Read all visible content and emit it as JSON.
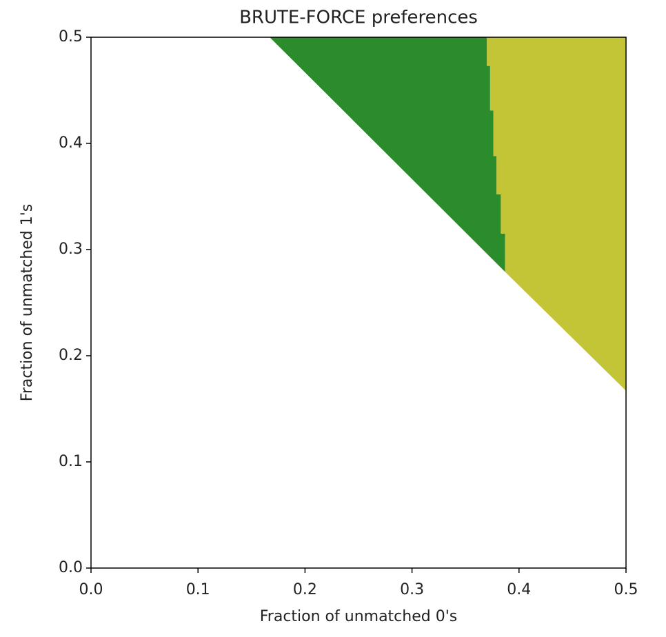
{
  "chart_data": {
    "type": "region",
    "title": "BRUTE-FORCE preferences",
    "xlabel": "Fraction of unmatched 0's",
    "ylabel": "Fraction of unmatched 1's",
    "xlim": [
      0,
      0.5
    ],
    "ylim": [
      0,
      0.5
    ],
    "xticks": [
      {
        "value": 0,
        "label": "0.0"
      },
      0.1,
      0.2,
      0.3,
      0.4,
      0.5
    ],
    "yticks": [
      {
        "value": 0,
        "label": "0.0"
      },
      0.1,
      0.2,
      0.3,
      0.4,
      0.5
    ],
    "regions": [
      {
        "color": "#2a8c2a",
        "x": [
          0.167,
          0.37,
          0.37,
          0.373,
          0.373,
          0.376,
          0.376,
          0.379,
          0.379,
          0.383,
          0.383,
          0.387,
          0.387
        ],
        "y": [
          0.5,
          0.5,
          0.473,
          0.473,
          0.431,
          0.431,
          0.388,
          0.388,
          0.352,
          0.352,
          0.315,
          0.315,
          0.279
        ]
      },
      {
        "color": "#c4c437",
        "x": [
          0.37,
          0.5,
          0.5,
          0.387,
          0.387,
          0.383,
          0.383,
          0.379,
          0.379,
          0.376,
          0.376,
          0.373,
          0.373,
          0.37
        ],
        "y": [
          0.5,
          0.5,
          0.167,
          0.279,
          0.315,
          0.315,
          0.352,
          0.352,
          0.388,
          0.388,
          0.431,
          0.431,
          0.473,
          0.473
        ]
      }
    ]
  }
}
